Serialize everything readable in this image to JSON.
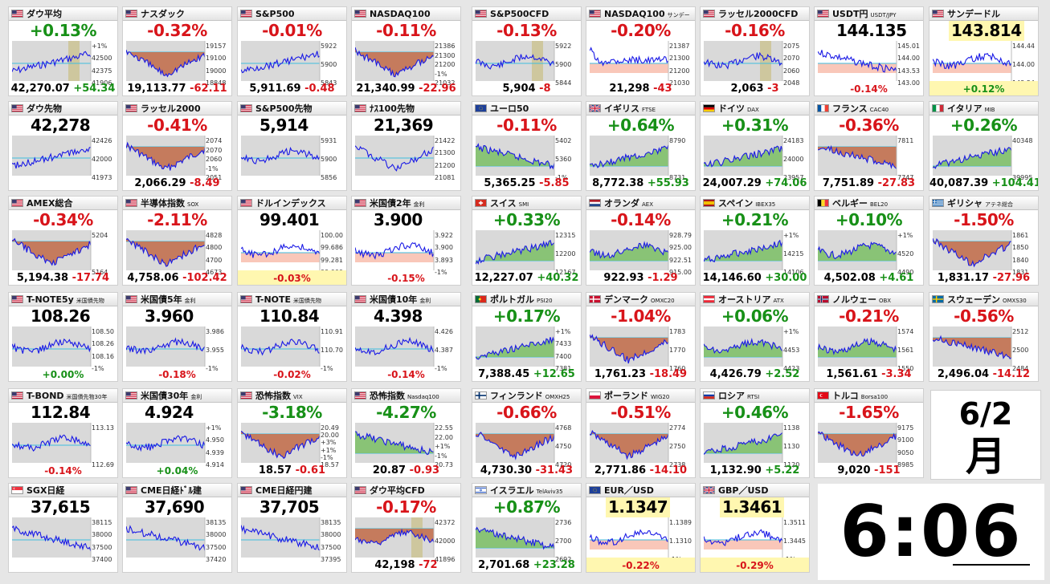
{
  "tiles": [
    {
      "name": "ダウ平均",
      "sub": "",
      "flag": "us",
      "big": "+0.13%",
      "dir": "up",
      "price": "42,270.07",
      "chg": "+54.34",
      "axis": [
        "+1%",
        "42500",
        "42375",
        "41906"
      ],
      "trend": "up",
      "bg": "gray",
      "bar": true
    },
    {
      "name": "ナスダック",
      "sub": "",
      "flag": "us",
      "big": "-0.32%",
      "dir": "down",
      "price": "19,113.77",
      "chg": "-62.11",
      "axis": [
        "19157",
        "19100",
        "19000",
        "18848"
      ],
      "trend": "vdown",
      "bg": "red"
    },
    {
      "name": "S&P500",
      "sub": "",
      "flag": "us",
      "big": "-0.01%",
      "dir": "down",
      "price": "5,911.69",
      "chg": "-0.48",
      "axis": [
        "5922",
        "5900",
        "5843"
      ],
      "trend": "up",
      "bg": "gray"
    },
    {
      "name": "NASDAQ100",
      "sub": "",
      "flag": "us",
      "big": "-0.11%",
      "dir": "down",
      "price": "21,340.99",
      "chg": "-22.96",
      "axis": [
        "21386",
        "21300",
        "21200",
        "-1%",
        "21032"
      ],
      "trend": "vdown",
      "bg": "red"
    },
    {
      "name": "S&P500CFD",
      "sub": "",
      "flag": "us",
      "big": "-0.13%",
      "dir": "down",
      "price": "5,904",
      "chg": "-8",
      "axis": [
        "5922",
        "5900",
        "5844"
      ],
      "trend": "flat",
      "bg": "gray",
      "bar": true
    },
    {
      "name": "NASDAQ100",
      "sub": "サンデー",
      "flag": "us",
      "big": "-0.20%",
      "dir": "down",
      "price": "21,298",
      "chg": "-43",
      "axis": [
        "21387",
        "21300",
        "21200",
        "21030"
      ],
      "trend": "spike",
      "bg": "white"
    },
    {
      "name": "ラッセル2000CFD",
      "sub": "",
      "flag": "us",
      "big": "-0.16%",
      "dir": "down",
      "price": "2,063",
      "chg": "-3",
      "axis": [
        "2075",
        "2070",
        "2060",
        "2048"
      ],
      "trend": "flat",
      "bg": "gray",
      "bar": true
    },
    {
      "name": "USDT円",
      "sub": "USDT/JPY",
      "flag": "us",
      "big": "144.135",
      "dir": "lbl",
      "price": "",
      "chg": "-0.14%",
      "axis": [
        "145.01",
        "144.00",
        "143.53",
        "143.00"
      ],
      "trend": "down",
      "bg": "white",
      "pct": true
    },
    {
      "name": "サンデードル",
      "sub": "",
      "flag": "us",
      "big": "143.814",
      "dir": "lbly",
      "price": "",
      "chg": "+0.12%",
      "axis": [
        "144.44",
        "144.00",
        "143.54"
      ],
      "trend": "flat",
      "bg": "white",
      "pct": true,
      "yel": true
    },
    {
      "name": "ダウ先物",
      "sub": "",
      "flag": "us",
      "big": "42,278",
      "dir": "lbl",
      "price": "",
      "chg": "",
      "axis": [
        "42426",
        "42000",
        "41973"
      ],
      "trend": "up",
      "bg": "gray"
    },
    {
      "name": "ラッセル2000",
      "sub": "",
      "flag": "us",
      "big": "-0.41%",
      "dir": "down",
      "price": "2,066.29",
      "chg": "-8.49",
      "axis": [
        "2074",
        "2070",
        "2060",
        "-1%",
        "2051"
      ],
      "trend": "vdown",
      "bg": "red"
    },
    {
      "name": "S&P500先物",
      "sub": "",
      "flag": "us",
      "big": "5,914",
      "dir": "lbl",
      "price": "",
      "chg": "",
      "axis": [
        "5931",
        "5900",
        "5856"
      ],
      "trend": "flat",
      "bg": "gray"
    },
    {
      "name": "ﾅｽ100先物",
      "sub": "",
      "flag": "us",
      "big": "21,369",
      "dir": "lbl",
      "price": "",
      "chg": "",
      "axis": [
        "21422",
        "21300",
        "21200",
        "21081"
      ],
      "trend": "vdown",
      "bg": "gray"
    },
    {
      "name": "ユーロ50",
      "sub": "",
      "flag": "eu",
      "big": "-0.11%",
      "dir": "down",
      "price": "5,365.25",
      "chg": "-5.85",
      "axis": [
        "5402",
        "5360",
        "-1%"
      ],
      "trend": "down",
      "bg": "green"
    },
    {
      "name": "イギリス",
      "sub": "FTSE",
      "flag": "gb",
      "big": "+0.64%",
      "dir": "up",
      "price": "8,772.38",
      "chg": "+55.93",
      "axis": [
        "8790",
        "8731"
      ],
      "trend": "up",
      "bg": "green"
    },
    {
      "name": "ドイツ",
      "sub": "DAX",
      "flag": "de",
      "big": "+0.31%",
      "dir": "up",
      "price": "24,007.29",
      "chg": "+74.06",
      "axis": [
        "24183",
        "24000",
        "23957"
      ],
      "trend": "up",
      "bg": "green"
    },
    {
      "name": "フランス",
      "sub": "CAC40",
      "flag": "fr",
      "big": "-0.36%",
      "dir": "down",
      "price": "7,751.89",
      "chg": "-27.83",
      "axis": [
        "7811",
        "7747"
      ],
      "trend": "down",
      "bg": "red"
    },
    {
      "name": "イタリア",
      "sub": "MIB",
      "flag": "it",
      "big": "+0.26%",
      "dir": "up",
      "price": "40,087.39",
      "chg": "+104.41",
      "axis": [
        "40348",
        "39995"
      ],
      "trend": "up",
      "bg": "green"
    },
    {
      "name": "AMEX総合",
      "sub": "",
      "flag": "us",
      "big": "-0.34%",
      "dir": "down",
      "price": "5,194.38",
      "chg": "-17.74",
      "axis": [
        "5204",
        "5164"
      ],
      "trend": "vdown",
      "bg": "red"
    },
    {
      "name": "半導体指数",
      "sub": "SOX",
      "flag": "us",
      "big": "-2.11%",
      "dir": "down",
      "price": "4,758.06",
      "chg": "-102.42",
      "axis": [
        "4828",
        "4800",
        "4700",
        "4673"
      ],
      "trend": "vdown",
      "bg": "red"
    },
    {
      "name": "ドルインデックス",
      "sub": "",
      "flag": "us",
      "big": "99.401",
      "dir": "lbl",
      "price": "",
      "chg": "-0.03%",
      "axis": [
        "100.00",
        "99.686",
        "99.281",
        "99.000"
      ],
      "trend": "flat",
      "bg": "white",
      "pct": true,
      "yel": true
    },
    {
      "name": "米国債2年",
      "sub": "金利",
      "flag": "us",
      "big": "3.900",
      "dir": "lbl",
      "price": "",
      "chg": "-0.15%",
      "axis": [
        "3.922",
        "3.900",
        "3.893",
        "-1%"
      ],
      "trend": "flat",
      "bg": "white",
      "pct": true
    },
    {
      "name": "スイス",
      "sub": "SMI",
      "flag": "ch",
      "big": "+0.33%",
      "dir": "up",
      "price": "12,227.07",
      "chg": "+40.32",
      "axis": [
        "12315",
        "12200",
        "12167"
      ],
      "trend": "up",
      "bg": "green"
    },
    {
      "name": "オランダ",
      "sub": "AEX",
      "flag": "nl",
      "big": "-0.14%",
      "dir": "down",
      "price": "922.93",
      "chg": "-1.29",
      "axis": [
        "928.79",
        "925.00",
        "922.51",
        "915.00"
      ],
      "trend": "flat",
      "bg": "green"
    },
    {
      "name": "スペイン",
      "sub": "IBEX35",
      "flag": "es",
      "big": "+0.21%",
      "dir": "up",
      "price": "14,146.60",
      "chg": "+30.00",
      "axis": [
        "+1%",
        "14215",
        "14106"
      ],
      "trend": "up",
      "bg": "green"
    },
    {
      "name": "ベルギー",
      "sub": "BEL20",
      "flag": "be",
      "big": "+0.10%",
      "dir": "up",
      "price": "4,502.08",
      "chg": "+4.61",
      "axis": [
        "+1%",
        "4520",
        "4490"
      ],
      "trend": "flat",
      "bg": "green"
    },
    {
      "name": "ギリシャ",
      "sub": "アテネ総合",
      "flag": "gr",
      "big": "-1.50%",
      "dir": "down",
      "price": "1,831.17",
      "chg": "-27.96",
      "axis": [
        "1861",
        "1850",
        "1840",
        "1831"
      ],
      "trend": "vdown",
      "bg": "red"
    },
    {
      "name": "T-NOTE5y",
      "sub": "米国債先物",
      "flag": "us",
      "big": "108.26",
      "dir": "lbl",
      "price": "",
      "chg": "+0.00%",
      "axis": [
        "108.50",
        "108.26",
        "108.16",
        "-1%"
      ],
      "trend": "flat",
      "bg": "gray",
      "pct": true
    },
    {
      "name": "米国債5年",
      "sub": "金利",
      "flag": "us",
      "big": "3.960",
      "dir": "lbl",
      "price": "",
      "chg": "-0.18%",
      "axis": [
        "3.986",
        "3.955",
        "-1%"
      ],
      "trend": "flat",
      "bg": "gray",
      "pct": true
    },
    {
      "name": "T-NOTE",
      "sub": "米国債先物",
      "flag": "us",
      "big": "110.84",
      "dir": "lbl",
      "price": "",
      "chg": "-0.02%",
      "axis": [
        "110.91",
        "110.70",
        "-1%"
      ],
      "trend": "flat",
      "bg": "gray",
      "pct": true
    },
    {
      "name": "米国債10年",
      "sub": "金利",
      "flag": "us",
      "big": "4.398",
      "dir": "lbl",
      "price": "",
      "chg": "-0.14%",
      "axis": [
        "4.426",
        "4.387",
        "-1%"
      ],
      "trend": "flat",
      "bg": "gray",
      "pct": true
    },
    {
      "name": "ポルトガル",
      "sub": "PSI20",
      "flag": "pt",
      "big": "+0.17%",
      "dir": "up",
      "price": "7,388.45",
      "chg": "+12.65",
      "axis": [
        "+1%",
        "7433",
        "7400",
        "7381"
      ],
      "trend": "up",
      "bg": "green"
    },
    {
      "name": "デンマーク",
      "sub": "OMXC20",
      "flag": "dk",
      "big": "-1.04%",
      "dir": "down",
      "price": "1,761.23",
      "chg": "-18.49",
      "axis": [
        "1783",
        "1770",
        "1760"
      ],
      "trend": "vdown",
      "bg": "red"
    },
    {
      "name": "オーストリア",
      "sub": "ATX",
      "flag": "at",
      "big": "+0.06%",
      "dir": "up",
      "price": "4,426.79",
      "chg": "+2.52",
      "axis": [
        "+1%",
        "4453",
        "4423"
      ],
      "trend": "flat",
      "bg": "green"
    },
    {
      "name": "ノルウェー",
      "sub": "OBX",
      "flag": "no",
      "big": "-0.21%",
      "dir": "down",
      "price": "1,561.61",
      "chg": "-3.34",
      "axis": [
        "1574",
        "1561",
        "1550"
      ],
      "trend": "flat",
      "bg": "green"
    },
    {
      "name": "スウェーデン",
      "sub": "OMXS30",
      "flag": "se",
      "big": "-0.56%",
      "dir": "down",
      "price": "2,496.04",
      "chg": "-14.12",
      "axis": [
        "2512",
        "2500",
        "2484"
      ],
      "trend": "down",
      "bg": "red"
    },
    {
      "name": "T-BOND",
      "sub": "米国債先物30年",
      "flag": "us",
      "big": "112.84",
      "dir": "lbl",
      "price": "",
      "chg": "-0.14%",
      "axis": [
        "113.13",
        "112.69"
      ],
      "trend": "flat",
      "bg": "gray",
      "pct": true
    },
    {
      "name": "米国債30年",
      "sub": "金利",
      "flag": "us",
      "big": "4.924",
      "dir": "lbl",
      "price": "",
      "chg": "+0.04%",
      "axis": [
        "+1%",
        "4.950",
        "4.939",
        "4.914"
      ],
      "trend": "flat",
      "bg": "gray",
      "pct": true
    },
    {
      "name": "恐怖指数",
      "sub": "VIX",
      "flag": "us",
      "big": "-3.18%",
      "dir": "up",
      "price": "18.57",
      "chg": "-0.61",
      "axis": [
        "20.49",
        "20.00",
        "+3%",
        "+1%",
        "-1%",
        "18.57"
      ],
      "trend": "vdown",
      "bg": "red"
    },
    {
      "name": "恐怖指数",
      "sub": "Nasdaq100",
      "flag": "us",
      "big": "-4.27%",
      "dir": "up",
      "price": "20.87",
      "chg": "-0.93",
      "axis": [
        "22.55",
        "22.00",
        "+1%",
        "-1%",
        "20.73"
      ],
      "trend": "down",
      "bg": "green"
    },
    {
      "name": "フィンランド",
      "sub": "OMXH25",
      "flag": "fi",
      "big": "-0.66%",
      "dir": "down",
      "price": "4,730.30",
      "chg": "-31.43",
      "axis": [
        "4768",
        "4750",
        "4720"
      ],
      "trend": "vdown",
      "bg": "red"
    },
    {
      "name": "ポーランド",
      "sub": "WIG20",
      "flag": "pl",
      "big": "-0.51%",
      "dir": "down",
      "price": "2,771.86",
      "chg": "-14.10",
      "axis": [
        "2774",
        "2750",
        "2738"
      ],
      "trend": "vdown",
      "bg": "red"
    },
    {
      "name": "ロシア",
      "sub": "RTSI",
      "flag": "ru",
      "big": "+0.46%",
      "dir": "up",
      "price": "1,132.90",
      "chg": "+5.22",
      "axis": [
        "1138",
        "1130",
        "1120"
      ],
      "trend": "up",
      "bg": "green"
    },
    {
      "name": "トルコ",
      "sub": "Borsa100",
      "flag": "tr",
      "big": "-1.65%",
      "dir": "down",
      "price": "9,020",
      "chg": "-151",
      "axis": [
        "9175",
        "9100",
        "9050",
        "8985"
      ],
      "trend": "vdown",
      "bg": "red"
    },
    {
      "name": "SGX日経",
      "sub": "",
      "flag": "sg",
      "big": "37,615",
      "dir": "lbl",
      "price": "",
      "chg": "",
      "axis": [
        "38115",
        "38000",
        "37500",
        "37400"
      ],
      "trend": "down",
      "bg": "gray"
    },
    {
      "name": "CME日経ﾄﾞﾙ建",
      "sub": "",
      "flag": "us",
      "big": "37,690",
      "dir": "lbl",
      "price": "",
      "chg": "",
      "axis": [
        "38135",
        "38000",
        "37500",
        "37420"
      ],
      "trend": "down",
      "bg": "gray"
    },
    {
      "name": "CME日経円建",
      "sub": "",
      "flag": "us",
      "big": "37,705",
      "dir": "lbl",
      "price": "",
      "chg": "",
      "axis": [
        "38135",
        "38000",
        "37500",
        "37395"
      ],
      "trend": "down",
      "bg": "gray"
    },
    {
      "name": "ダウ平均CFD",
      "sub": "",
      "flag": "us",
      "big": "-0.17%",
      "dir": "down",
      "price": "42,198",
      "chg": "-72",
      "axis": [
        "42372",
        "42000",
        "41896"
      ],
      "trend": "flat",
      "bg": "red",
      "bar": true
    },
    {
      "name": "イスラエル",
      "sub": "TelAviv35",
      "flag": "il",
      "big": "+0.87%",
      "dir": "up",
      "price": "2,701.68",
      "chg": "+23.28",
      "axis": [
        "2736",
        "2700",
        "2692"
      ],
      "trend": "down",
      "bg": "green"
    },
    {
      "name": "EUR／USD",
      "sub": "",
      "flag": "eu",
      "big": "1.1347",
      "dir": "lbly",
      "price": "",
      "chg": "-0.22%",
      "axis": [
        "1.1389",
        "1.1310",
        "-1%"
      ],
      "trend": "flat",
      "bg": "white",
      "pct": true,
      "yel": true
    },
    {
      "name": "GBP／USD",
      "sub": "",
      "flag": "gb",
      "big": "1.3461",
      "dir": "lbly",
      "price": "",
      "chg": "-0.29%",
      "axis": [
        "1.3511",
        "1.3445",
        "-1%"
      ],
      "trend": "flat",
      "bg": "white",
      "pct": true,
      "yel": true
    }
  ],
  "date": {
    "md": "6/2",
    "wd": "月"
  },
  "clock": {
    "time": "6:06"
  }
}
